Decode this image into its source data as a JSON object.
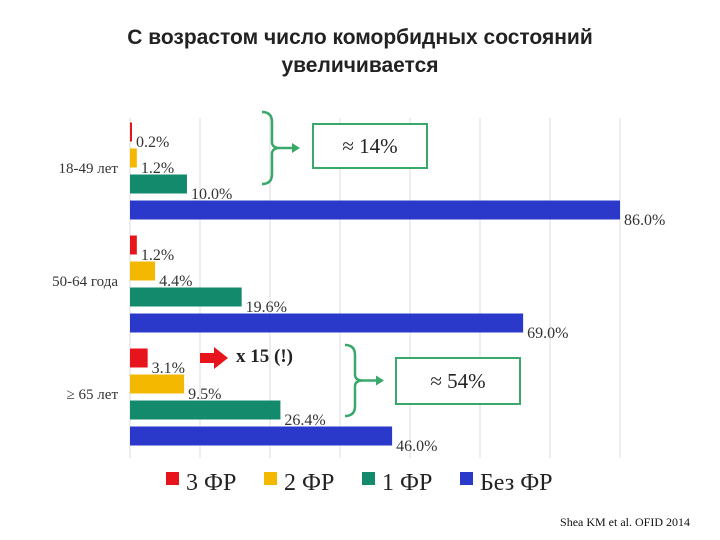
{
  "title_line1": "С возрастом число коморбидных состояний",
  "title_line2": "увеличивается",
  "citation": "Shea KM et al. OFID 2014",
  "chart_data": {
    "type": "bar",
    "orientation": "horizontal",
    "categories": [
      "18-49 лет",
      "50-64 года",
      "≥ 65 лет"
    ],
    "series": [
      {
        "name": "3 ФР",
        "color": "#e8141b",
        "values": [
          0.2,
          1.2,
          3.1
        ],
        "labels": [
          "0.2%",
          "1.2%",
          "3.1%"
        ]
      },
      {
        "name": "2 ФР",
        "color": "#f5b800",
        "values": [
          1.2,
          4.4,
          9.5
        ],
        "labels": [
          "1.2%",
          "4.4%",
          "9.5%"
        ]
      },
      {
        "name": "1 ФР",
        "color": "#138a6b",
        "values": [
          10.0,
          19.6,
          26.4
        ],
        "labels": [
          "10.0%",
          "19.6%",
          "26.4%"
        ]
      },
      {
        "name": "Без ФР",
        "color": "#2a39c9",
        "values": [
          86.0,
          69.0,
          46.0
        ],
        "labels": [
          "86.0%",
          "69.0%",
          "46.0%"
        ]
      }
    ],
    "xlim": [
      0,
      86
    ],
    "grid": true,
    "legend": "bottom",
    "annotations": [
      {
        "text": "≈ 14%",
        "group": 0
      },
      {
        "text": "≈ 54%",
        "group": 2
      },
      {
        "text": "x 15 (!)",
        "group": 2
      }
    ]
  }
}
